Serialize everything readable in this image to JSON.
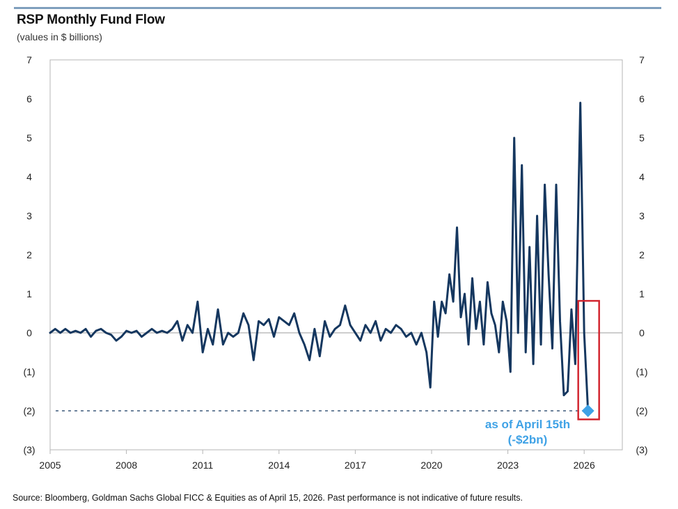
{
  "header": {
    "title": "RSP Monthly Fund Flow",
    "subtitle": "(values in $ billions)"
  },
  "footer": {
    "source": "Source: Bloomberg, Goldman Sachs Global FICC & Equities as of April 15, 2026. Past performance is not indicative of future results."
  },
  "colors": {
    "line": "#15375f",
    "accent": "#3fa2e6",
    "highlight_box": "#d22630",
    "axis": "#b5b5b5",
    "zero_line": "#b0b0b0",
    "top_rule": "#7f9fbd"
  },
  "chart_data": {
    "type": "line",
    "title": "RSP Monthly Fund Flow",
    "ylabel": "values in $ billions",
    "xlabel": "",
    "xlim": [
      2005,
      2027.5
    ],
    "ylim": [
      -3,
      7
    ],
    "x_ticks": [
      2005,
      2008,
      2011,
      2014,
      2017,
      2020,
      2023,
      2026
    ],
    "x_tick_labels": [
      "2005",
      "2008",
      "2011",
      "2014",
      "2017",
      "2020",
      "2023",
      "2026"
    ],
    "y_ticks": [
      7,
      6,
      5,
      4,
      3,
      2,
      1,
      0,
      -1,
      -2,
      -3
    ],
    "y_tick_labels": [
      "7",
      "6",
      "5",
      "4",
      "3",
      "2",
      "1",
      "0",
      "(1)",
      "(2)",
      "(3)"
    ],
    "grid": false,
    "series": [
      {
        "name": "RSP Monthly Fund Flow",
        "x": [
          2005.0,
          2005.2,
          2005.4,
          2005.6,
          2005.8,
          2006.0,
          2006.2,
          2006.4,
          2006.6,
          2006.8,
          2007.0,
          2007.2,
          2007.4,
          2007.6,
          2007.8,
          2008.0,
          2008.2,
          2008.4,
          2008.6,
          2008.8,
          2009.0,
          2009.2,
          2009.4,
          2009.6,
          2009.8,
          2010.0,
          2010.2,
          2010.4,
          2010.6,
          2010.8,
          2011.0,
          2011.2,
          2011.4,
          2011.6,
          2011.8,
          2012.0,
          2012.2,
          2012.4,
          2012.6,
          2012.8,
          2013.0,
          2013.2,
          2013.4,
          2013.6,
          2013.8,
          2014.0,
          2014.2,
          2014.4,
          2014.6,
          2014.8,
          2015.0,
          2015.2,
          2015.4,
          2015.6,
          2015.8,
          2016.0,
          2016.2,
          2016.4,
          2016.6,
          2016.8,
          2017.0,
          2017.2,
          2017.4,
          2017.6,
          2017.8,
          2018.0,
          2018.2,
          2018.4,
          2018.6,
          2018.8,
          2019.0,
          2019.2,
          2019.4,
          2019.6,
          2019.8,
          2019.95,
          2020.1,
          2020.25,
          2020.4,
          2020.55,
          2020.7,
          2020.85,
          2021.0,
          2021.15,
          2021.3,
          2021.45,
          2021.6,
          2021.75,
          2021.9,
          2022.05,
          2022.2,
          2022.35,
          2022.5,
          2022.65,
          2022.8,
          2022.95,
          2023.1,
          2023.25,
          2023.4,
          2023.55,
          2023.7,
          2023.85,
          2024.0,
          2024.15,
          2024.3,
          2024.45,
          2024.6,
          2024.75,
          2024.9,
          2025.05,
          2025.2,
          2025.35,
          2025.5,
          2025.65,
          2025.85,
          2026.0,
          2026.15
        ],
        "values": [
          0.0,
          0.1,
          0.0,
          0.1,
          0.0,
          0.05,
          0.0,
          0.1,
          -0.1,
          0.05,
          0.1,
          0.0,
          -0.05,
          -0.2,
          -0.1,
          0.05,
          0.0,
          0.05,
          -0.1,
          0.0,
          0.1,
          0.0,
          0.05,
          0.0,
          0.1,
          0.3,
          -0.2,
          0.2,
          0.0,
          0.8,
          -0.5,
          0.1,
          -0.3,
          0.6,
          -0.3,
          0.0,
          -0.1,
          0.0,
          0.5,
          0.2,
          -0.7,
          0.3,
          0.2,
          0.35,
          -0.1,
          0.4,
          0.3,
          0.2,
          0.5,
          0.0,
          -0.3,
          -0.7,
          0.1,
          -0.6,
          0.3,
          -0.1,
          0.1,
          0.2,
          0.7,
          0.2,
          0.0,
          -0.2,
          0.2,
          0.0,
          0.3,
          -0.2,
          0.1,
          0.0,
          0.2,
          0.1,
          -0.1,
          0.0,
          -0.3,
          0.0,
          -0.5,
          -1.4,
          0.8,
          -0.1,
          0.8,
          0.5,
          1.5,
          0.8,
          2.7,
          0.4,
          1.0,
          -0.3,
          1.4,
          0.1,
          0.8,
          -0.3,
          1.3,
          0.5,
          0.2,
          -0.5,
          0.8,
          0.3,
          -1.0,
          5.0,
          0.0,
          4.3,
          -0.5,
          2.2,
          -0.8,
          3.0,
          -0.3,
          3.8,
          1.5,
          -0.4,
          3.8,
          0.3,
          -1.6,
          -1.5,
          0.6,
          -0.8,
          5.9,
          0.0,
          -2.0
        ]
      }
    ],
    "reference_line": {
      "value": -2,
      "style": "dashed"
    },
    "last_point": {
      "x": 2026.15,
      "value": -2
    },
    "annotations": [
      "as of April 15th",
      "(-$2bn)"
    ]
  }
}
